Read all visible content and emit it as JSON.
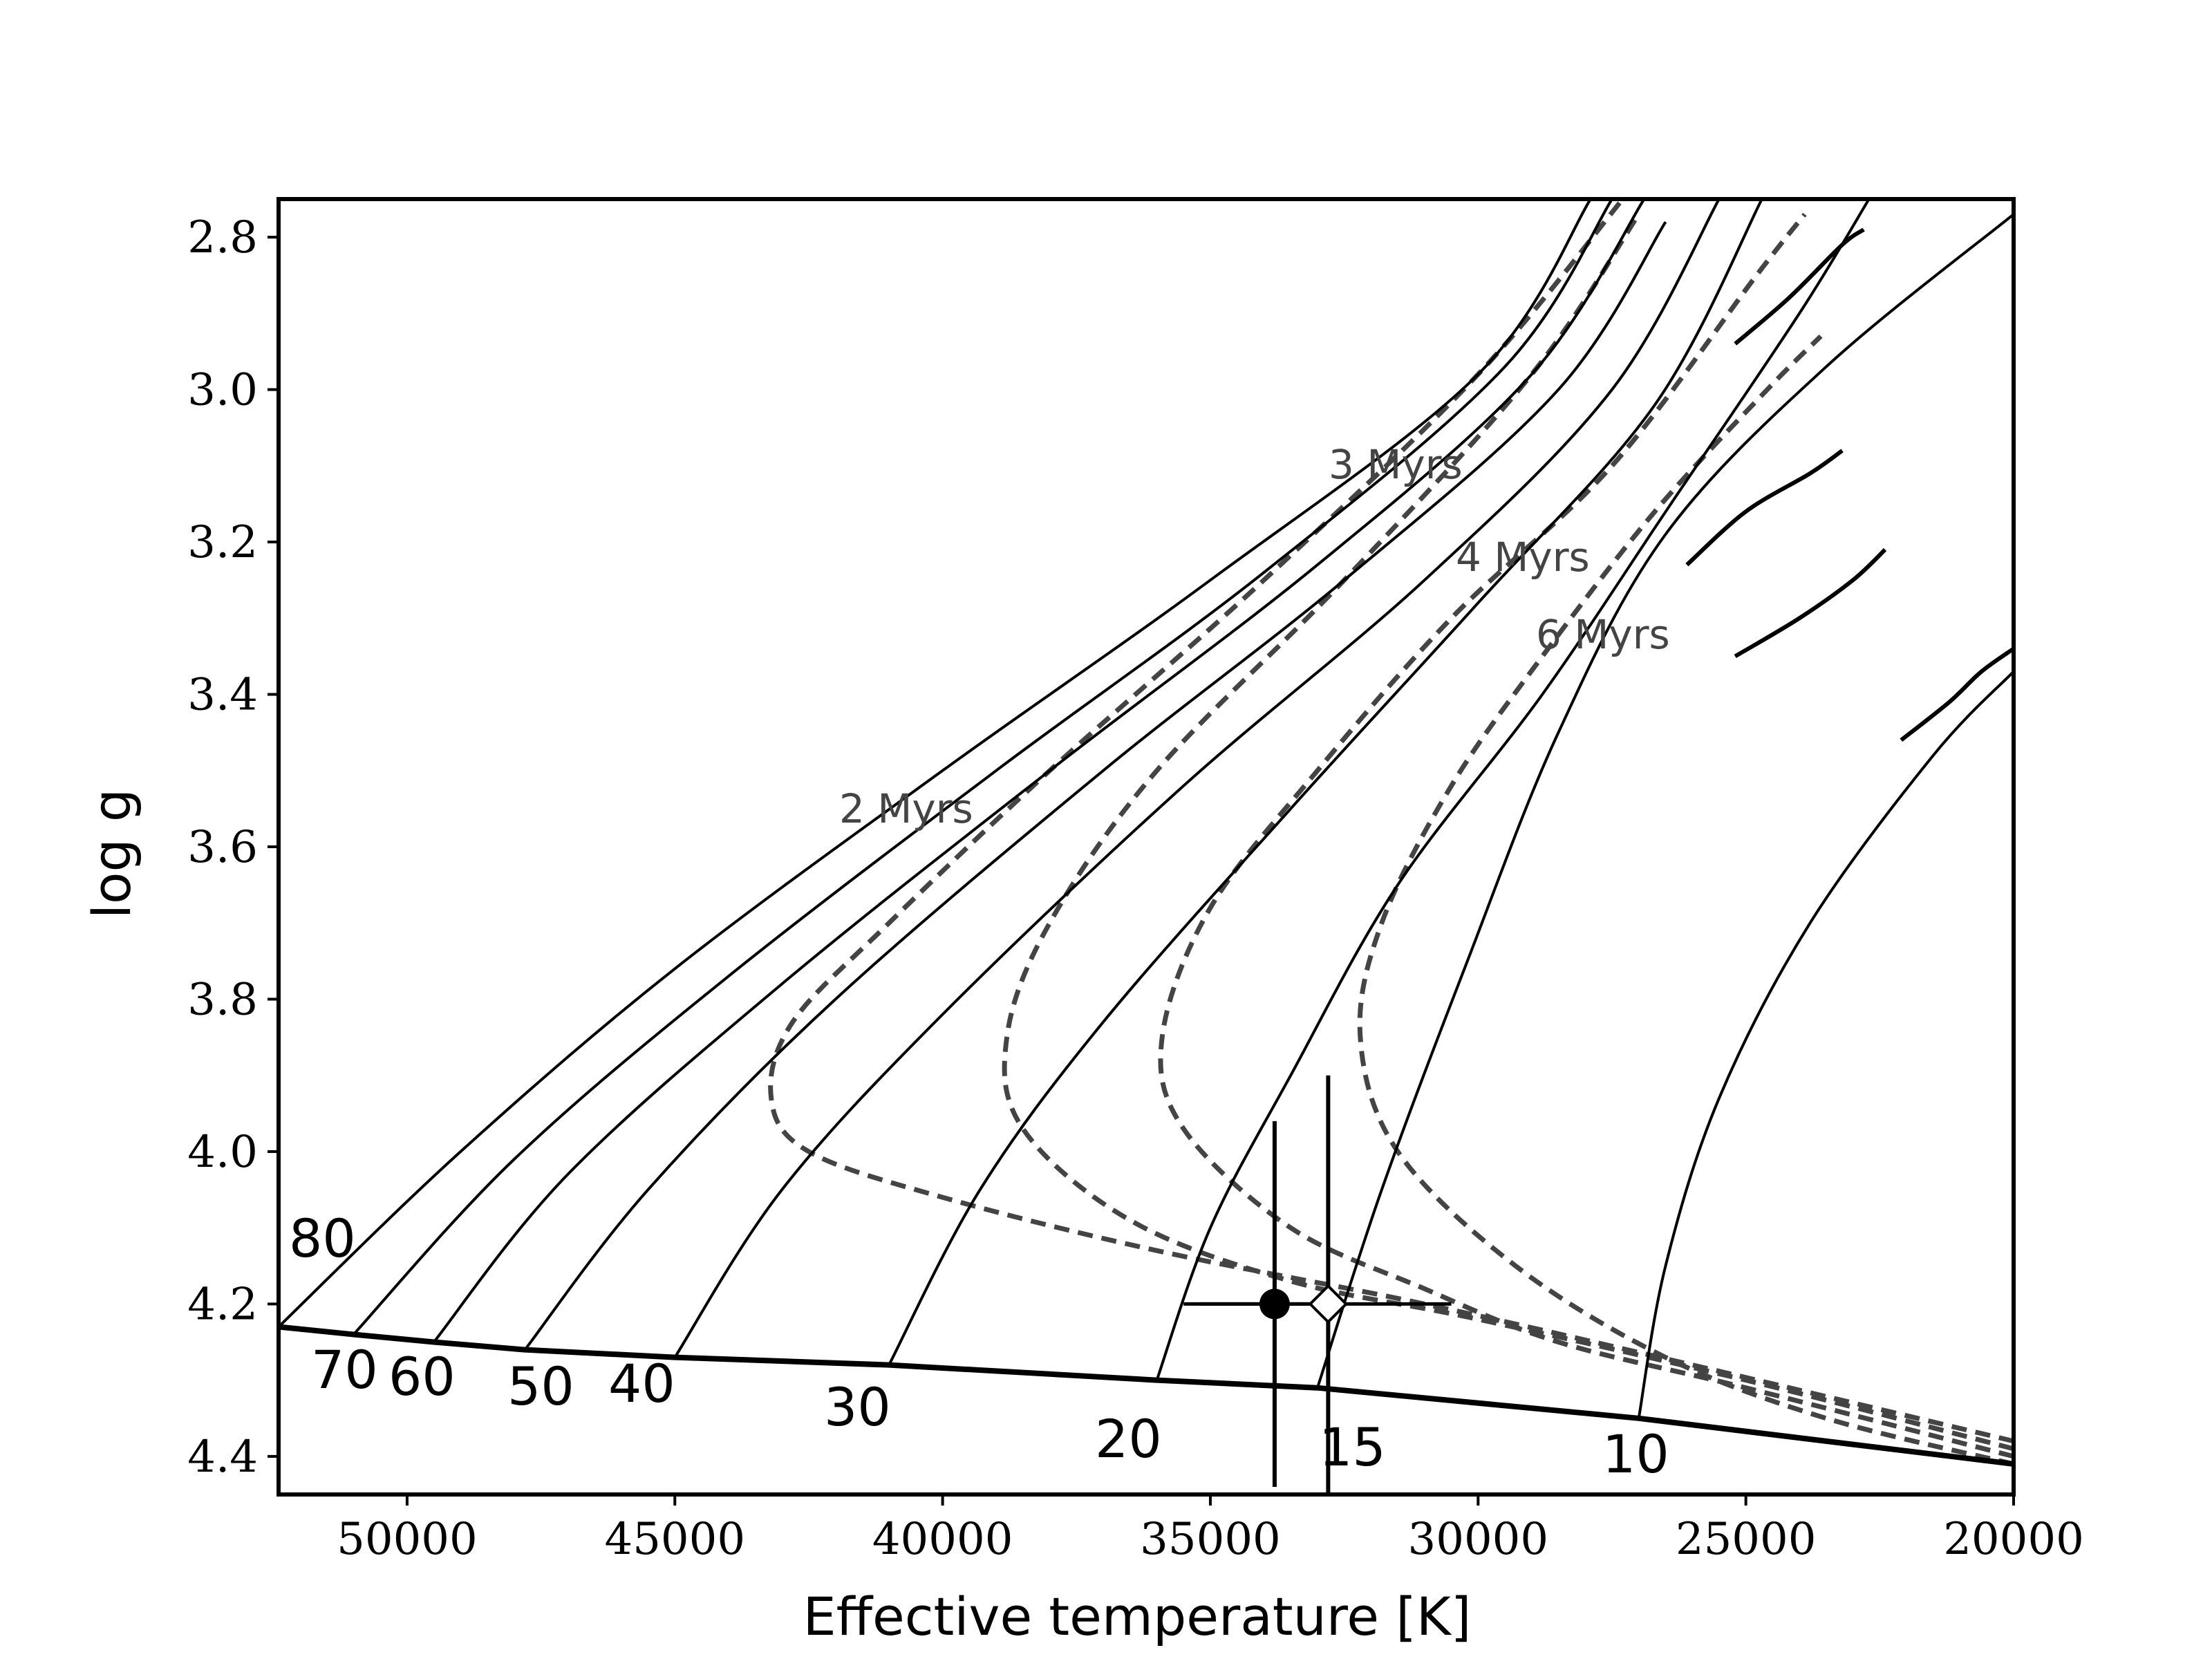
{
  "chart_data": {
    "type": "line",
    "xlabel": "Effective temperature [K]",
    "ylabel": "log g",
    "xlim": [
      52400,
      20000
    ],
    "ylim": [
      4.45,
      2.75
    ],
    "x_ticks": [
      50000,
      45000,
      40000,
      35000,
      30000,
      25000,
      20000
    ],
    "x_tick_labels": [
      "50000",
      "45000",
      "40000",
      "35000",
      "30000",
      "25000",
      "20000"
    ],
    "y_ticks": [
      2.8,
      3.0,
      3.2,
      3.4,
      3.6,
      3.8,
      4.0,
      4.2,
      4.4
    ],
    "y_tick_labels": [
      "2.8",
      "3.0",
      "3.2",
      "3.4",
      "3.6",
      "3.8",
      "4.0",
      "4.2",
      "4.4"
    ],
    "grid": false,
    "zams": [
      [
        52400,
        4.23
      ],
      [
        51000,
        4.24
      ],
      [
        49500,
        4.25
      ],
      [
        47800,
        4.26
      ],
      [
        45000,
        4.27
      ],
      [
        41000,
        4.28
      ],
      [
        36000,
        4.3
      ],
      [
        33000,
        4.31
      ],
      [
        27000,
        4.35
      ],
      [
        20000,
        4.41
      ]
    ],
    "tracks": [
      {
        "mass_label": "80",
        "points": [
          [
            52400,
            4.23
          ],
          [
            49000,
            4.0
          ],
          [
            45000,
            3.76
          ],
          [
            40000,
            3.5
          ],
          [
            35000,
            3.25
          ],
          [
            30000,
            2.98
          ],
          [
            27900,
            2.75
          ]
        ]
      },
      {
        "mass_label": "70",
        "points": [
          [
            51000,
            4.24
          ],
          [
            48000,
            4.01
          ],
          [
            44000,
            3.77
          ],
          [
            39000,
            3.5
          ],
          [
            34000,
            3.24
          ],
          [
            29500,
            2.97
          ],
          [
            27500,
            2.75
          ]
        ]
      },
      {
        "mass_label": "60",
        "points": [
          [
            49500,
            4.25
          ],
          [
            47000,
            4.03
          ],
          [
            43000,
            3.78
          ],
          [
            38000,
            3.5
          ],
          [
            33000,
            3.23
          ],
          [
            29000,
            2.98
          ],
          [
            26900,
            2.75
          ]
        ]
      },
      {
        "mass_label": "50",
        "points": [
          [
            47800,
            4.26
          ],
          [
            45500,
            4.05
          ],
          [
            42000,
            3.8
          ],
          [
            37000,
            3.5
          ],
          [
            32500,
            3.25
          ],
          [
            28500,
            3.0
          ],
          [
            26500,
            2.78
          ]
        ]
      },
      {
        "mass_label": "40",
        "points": [
          [
            45000,
            4.27
          ],
          [
            43000,
            4.05
          ],
          [
            40000,
            3.82
          ],
          [
            35500,
            3.52
          ],
          [
            31000,
            3.25
          ],
          [
            27500,
            3.0
          ],
          [
            25500,
            2.75
          ]
        ]
      },
      {
        "mass_label": "30",
        "points": [
          [
            41000,
            4.28
          ],
          [
            39300,
            4.05
          ],
          [
            37000,
            3.83
          ],
          [
            33500,
            3.55
          ],
          [
            30000,
            3.28
          ],
          [
            26700,
            3.02
          ],
          [
            24700,
            2.75
          ]
        ]
      },
      {
        "mass_label": "20",
        "points": [
          [
            36000,
            4.3
          ],
          [
            35000,
            4.1
          ],
          [
            33500,
            3.9
          ],
          [
            31500,
            3.65
          ],
          [
            28800,
            3.4
          ],
          [
            26400,
            3.15
          ],
          [
            24000,
            2.9
          ],
          [
            22700,
            2.75
          ]
        ]
      },
      {
        "mass_label": "15",
        "points": [
          [
            33000,
            4.31
          ],
          [
            31800,
            4.05
          ],
          [
            30200,
            3.75
          ],
          [
            28500,
            3.45
          ],
          [
            26500,
            3.19
          ],
          [
            23500,
            2.97
          ],
          [
            20000,
            2.77
          ]
        ]
      },
      {
        "mass_label": "10",
        "points": [
          [
            27000,
            4.35
          ],
          [
            26500,
            4.15
          ],
          [
            25500,
            3.93
          ],
          [
            23800,
            3.7
          ],
          [
            21500,
            3.48
          ],
          [
            20000,
            3.37
          ]
        ]
      }
    ],
    "hooks": [
      {
        "points": [
          [
            25200,
            2.94
          ],
          [
            24200,
            2.88
          ],
          [
            23200,
            2.81
          ],
          [
            22800,
            2.79
          ]
        ]
      },
      {
        "points": [
          [
            26100,
            3.23
          ],
          [
            25000,
            3.16
          ],
          [
            23800,
            3.11
          ],
          [
            23200,
            3.08
          ]
        ]
      },
      {
        "points": [
          [
            25200,
            3.35
          ],
          [
            24000,
            3.3
          ],
          [
            23000,
            3.25
          ],
          [
            22400,
            3.21
          ]
        ]
      },
      {
        "points": [
          [
            22100,
            3.46
          ],
          [
            21200,
            3.41
          ],
          [
            20600,
            3.37
          ],
          [
            20000,
            3.34
          ]
        ]
      }
    ],
    "isochrones": [
      {
        "label": "2 Myrs",
        "points": [
          [
            20000,
            4.38
          ],
          [
            26000,
            4.28
          ],
          [
            31000,
            4.2
          ],
          [
            36000,
            4.13
          ],
          [
            40000,
            4.06
          ],
          [
            42500,
            4.0
          ],
          [
            43200,
            3.93
          ],
          [
            42800,
            3.83
          ],
          [
            41000,
            3.7
          ],
          [
            38000,
            3.5
          ],
          [
            34000,
            3.25
          ],
          [
            30000,
            2.98
          ],
          [
            27300,
            2.75
          ]
        ]
      },
      {
        "label": "3 Myrs",
        "points": [
          [
            20000,
            4.39
          ],
          [
            25000,
            4.3
          ],
          [
            30000,
            4.22
          ],
          [
            33500,
            4.17
          ],
          [
            36500,
            4.09
          ],
          [
            38500,
            3.97
          ],
          [
            38800,
            3.85
          ],
          [
            38000,
            3.7
          ],
          [
            36000,
            3.5
          ],
          [
            32500,
            3.25
          ],
          [
            29000,
            2.98
          ],
          [
            27000,
            2.77
          ]
        ]
      },
      {
        "label": "4 Myrs",
        "points": [
          [
            20000,
            4.4
          ],
          [
            25000,
            4.31
          ],
          [
            28500,
            4.25
          ],
          [
            31000,
            4.18
          ],
          [
            33500,
            4.1
          ],
          [
            35500,
            3.97
          ],
          [
            35900,
            3.85
          ],
          [
            35000,
            3.68
          ],
          [
            33000,
            3.5
          ],
          [
            30500,
            3.3
          ],
          [
            27500,
            3.1
          ],
          [
            24800,
            2.85
          ],
          [
            23900,
            2.77
          ]
        ]
      },
      {
        "label": "6 Myrs",
        "points": [
          [
            20000,
            4.41
          ],
          [
            23500,
            4.35
          ],
          [
            26500,
            4.27
          ],
          [
            29300,
            4.15
          ],
          [
            31500,
            4.0
          ],
          [
            32200,
            3.85
          ],
          [
            31800,
            3.7
          ],
          [
            30500,
            3.52
          ],
          [
            28800,
            3.35
          ],
          [
            26700,
            3.16
          ],
          [
            24600,
            3.0
          ],
          [
            23600,
            2.93
          ]
        ]
      }
    ],
    "observations": [
      {
        "marker": "filled-circle",
        "teff": 33800,
        "logg": 4.2,
        "teff_range": [
          35500,
          33000
        ],
        "logg_range": [
          3.96,
          4.44
        ]
      },
      {
        "marker": "open-diamond",
        "teff": 32800,
        "logg": 4.2,
        "teff_range": [
          35200,
          30500
        ],
        "logg_range": [
          3.9,
          4.45
        ]
      }
    ]
  }
}
